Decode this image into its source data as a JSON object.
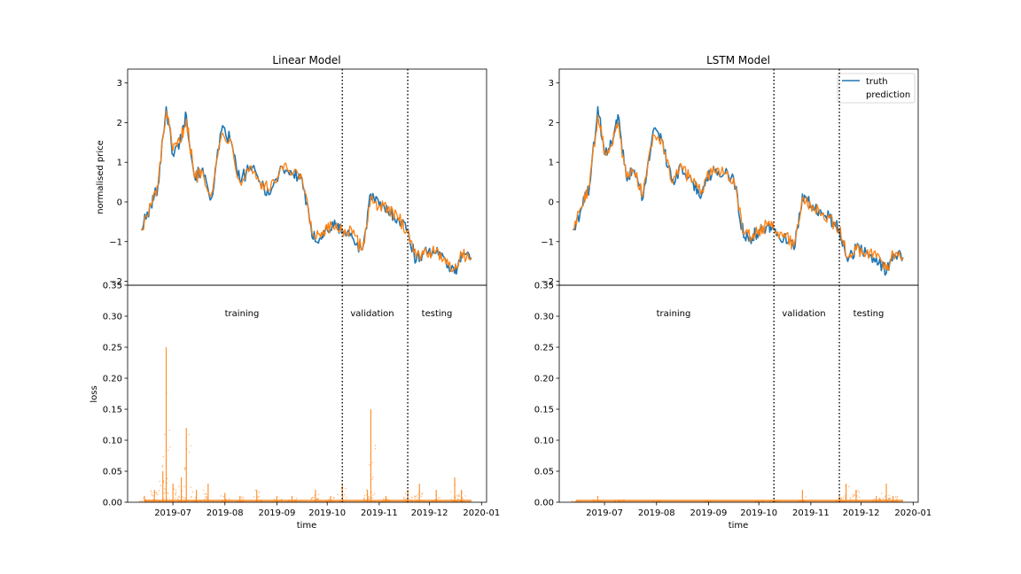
{
  "chart_data": [
    {
      "type": "line",
      "title": "Linear Model",
      "xlabel": "",
      "ylabel": "normalised price",
      "ylim": [
        -2.1,
        3.35
      ],
      "yticks": [
        -2,
        -1,
        0,
        1,
        2,
        3
      ],
      "series": [
        {
          "name": "truth",
          "color": "#1f77b4",
          "x": [
            "2019-06-12",
            "2019-06-18",
            "2019-06-22",
            "2019-06-27",
            "2019-07-01",
            "2019-07-05",
            "2019-07-09",
            "2019-07-14",
            "2019-07-18",
            "2019-07-24",
            "2019-07-30",
            "2019-08-04",
            "2019-08-10",
            "2019-08-16",
            "2019-08-22",
            "2019-08-28",
            "2019-09-04",
            "2019-09-10",
            "2019-09-16",
            "2019-09-22",
            "2019-09-27",
            "2019-10-01",
            "2019-10-06",
            "2019-10-10",
            "2019-10-16",
            "2019-10-22",
            "2019-10-27",
            "2019-11-01",
            "2019-11-06",
            "2019-11-12",
            "2019-11-18",
            "2019-11-23",
            "2019-11-28",
            "2019-12-04",
            "2019-12-10",
            "2019-12-16",
            "2019-12-20",
            "2019-12-26"
          ],
          "y": [
            -0.7,
            -0.1,
            0.4,
            2.4,
            1.2,
            1.5,
            2.2,
            0.6,
            0.8,
            0.1,
            1.8,
            1.6,
            0.5,
            0.9,
            0.5,
            0.2,
            0.9,
            0.7,
            0.6,
            -0.9,
            -0.9,
            -0.7,
            -0.6,
            -0.7,
            -0.9,
            -1.2,
            0.2,
            -0.1,
            -0.2,
            -0.4,
            -0.7,
            -1.5,
            -1.2,
            -1.3,
            -1.4,
            -1.8,
            -1.3,
            -1.4
          ]
        },
        {
          "name": "prediction",
          "color": "#ff7f0e",
          "x": [
            "2019-06-12",
            "2019-06-18",
            "2019-06-22",
            "2019-06-27",
            "2019-07-01",
            "2019-07-05",
            "2019-07-09",
            "2019-07-14",
            "2019-07-18",
            "2019-07-24",
            "2019-07-30",
            "2019-08-04",
            "2019-08-10",
            "2019-08-16",
            "2019-08-22",
            "2019-08-28",
            "2019-09-04",
            "2019-09-10",
            "2019-09-16",
            "2019-09-22",
            "2019-09-27",
            "2019-10-01",
            "2019-10-06",
            "2019-10-10",
            "2019-10-16",
            "2019-10-22",
            "2019-10-27",
            "2019-11-01",
            "2019-11-06",
            "2019-11-12",
            "2019-11-18",
            "2019-11-23",
            "2019-11-28",
            "2019-12-04",
            "2019-12-10",
            "2019-12-16",
            "2019-12-20",
            "2019-12-26"
          ],
          "y": [
            -0.7,
            -0.1,
            0.4,
            2.3,
            1.3,
            1.5,
            2.1,
            0.6,
            0.8,
            0.2,
            1.7,
            1.6,
            0.5,
            0.9,
            0.5,
            0.3,
            0.9,
            0.7,
            0.6,
            -0.8,
            -0.9,
            -0.7,
            -0.6,
            -0.7,
            -0.8,
            -1.2,
            0.1,
            -0.1,
            -0.2,
            -0.4,
            -0.7,
            -1.4,
            -1.2,
            -1.3,
            -1.4,
            -1.7,
            -1.3,
            -1.4
          ]
        }
      ],
      "vlines": [
        "2019-10-10",
        "2019-11-18"
      ]
    },
    {
      "type": "scatter",
      "title": "",
      "xlabel": "time",
      "ylabel": "loss",
      "xlim": [
        "2019-06-04",
        "2020-01-04"
      ],
      "ylim": [
        0,
        0.35
      ],
      "yticks": [
        0.0,
        0.05,
        0.1,
        0.15,
        0.2,
        0.25,
        0.3,
        0.35
      ],
      "xticks": [
        "2019-07",
        "2019-08",
        "2019-09",
        "2019-10",
        "2019-11",
        "2019-12",
        "2020-01"
      ],
      "xtick_dates": [
        "2019-07-01",
        "2019-08-01",
        "2019-09-01",
        "2019-10-01",
        "2019-11-01",
        "2019-12-01",
        "2020-01-01"
      ],
      "annotations": [
        "training",
        "validation",
        "testing"
      ],
      "series": [
        {
          "color": "#ff7f0e",
          "x": [
            "2019-06-14",
            "2019-06-20",
            "2019-06-25",
            "2019-06-27",
            "2019-07-01",
            "2019-07-06",
            "2019-07-09",
            "2019-07-15",
            "2019-07-22",
            "2019-08-01",
            "2019-08-10",
            "2019-08-20",
            "2019-09-01",
            "2019-09-10",
            "2019-09-24",
            "2019-10-03",
            "2019-10-10",
            "2019-10-25",
            "2019-10-27",
            "2019-11-05",
            "2019-11-18",
            "2019-11-25",
            "2019-12-05",
            "2019-12-16",
            "2019-12-20"
          ],
          "y": [
            0.01,
            0.02,
            0.05,
            0.25,
            0.03,
            0.04,
            0.12,
            0.02,
            0.03,
            0.015,
            0.01,
            0.02,
            0.01,
            0.01,
            0.02,
            0.01,
            0.03,
            0.02,
            0.15,
            0.01,
            0.02,
            0.03,
            0.02,
            0.04,
            0.02
          ]
        }
      ],
      "vlines": [
        "2019-10-10",
        "2019-11-18"
      ]
    },
    {
      "type": "line",
      "title": "LSTM Model",
      "xlabel": "",
      "ylabel": "",
      "ylim": [
        -2.1,
        3.35
      ],
      "yticks": [
        -2,
        -1,
        0,
        1,
        2,
        3
      ],
      "legend": {
        "placement": "top-right",
        "entries": [
          "truth",
          "prediction"
        ]
      },
      "series": [
        {
          "name": "truth",
          "color": "#1f77b4",
          "x": [
            "2019-06-12",
            "2019-06-18",
            "2019-06-22",
            "2019-06-27",
            "2019-07-01",
            "2019-07-05",
            "2019-07-09",
            "2019-07-14",
            "2019-07-18",
            "2019-07-24",
            "2019-07-30",
            "2019-08-04",
            "2019-08-10",
            "2019-08-16",
            "2019-08-22",
            "2019-08-28",
            "2019-09-04",
            "2019-09-10",
            "2019-09-16",
            "2019-09-22",
            "2019-09-27",
            "2019-10-01",
            "2019-10-06",
            "2019-10-10",
            "2019-10-16",
            "2019-10-22",
            "2019-10-27",
            "2019-11-01",
            "2019-11-06",
            "2019-11-12",
            "2019-11-18",
            "2019-11-23",
            "2019-11-28",
            "2019-12-04",
            "2019-12-10",
            "2019-12-16",
            "2019-12-20",
            "2019-12-26"
          ],
          "y": [
            -0.7,
            -0.1,
            0.4,
            2.4,
            1.2,
            1.5,
            2.2,
            0.6,
            0.8,
            0.1,
            1.8,
            1.6,
            0.5,
            0.9,
            0.5,
            0.2,
            0.9,
            0.7,
            0.6,
            -0.9,
            -0.9,
            -0.7,
            -0.6,
            -0.7,
            -0.9,
            -1.2,
            0.2,
            -0.1,
            -0.2,
            -0.4,
            -0.7,
            -1.5,
            -1.2,
            -1.3,
            -1.4,
            -1.8,
            -1.3,
            -1.4
          ]
        },
        {
          "name": "prediction",
          "color": "#ff7f0e",
          "x": [
            "2019-06-12",
            "2019-06-18",
            "2019-06-22",
            "2019-06-27",
            "2019-07-01",
            "2019-07-05",
            "2019-07-09",
            "2019-07-14",
            "2019-07-18",
            "2019-07-24",
            "2019-07-30",
            "2019-08-04",
            "2019-08-10",
            "2019-08-16",
            "2019-08-22",
            "2019-08-28",
            "2019-09-04",
            "2019-09-10",
            "2019-09-16",
            "2019-09-22",
            "2019-09-27",
            "2019-10-01",
            "2019-10-06",
            "2019-10-10",
            "2019-10-16",
            "2019-10-22",
            "2019-10-27",
            "2019-11-01",
            "2019-11-06",
            "2019-11-12",
            "2019-11-18",
            "2019-11-23",
            "2019-11-28",
            "2019-12-04",
            "2019-12-10",
            "2019-12-16",
            "2019-12-20",
            "2019-12-26"
          ],
          "y": [
            -0.7,
            -0.1,
            0.4,
            2.2,
            1.3,
            1.4,
            2.0,
            0.6,
            0.8,
            0.2,
            1.7,
            1.6,
            0.5,
            0.9,
            0.5,
            0.3,
            0.9,
            0.7,
            0.6,
            -0.8,
            -0.9,
            -0.7,
            -0.6,
            -0.7,
            -0.8,
            -1.1,
            0.1,
            -0.1,
            -0.2,
            -0.4,
            -0.7,
            -1.4,
            -1.2,
            -1.3,
            -1.4,
            -1.7,
            -1.3,
            -1.4
          ]
        }
      ],
      "vlines": [
        "2019-10-10",
        "2019-11-18"
      ]
    },
    {
      "type": "scatter",
      "title": "",
      "xlabel": "time",
      "ylabel": "",
      "xlim": [
        "2019-06-04",
        "2020-01-04"
      ],
      "ylim": [
        0,
        0.35
      ],
      "yticks": [
        0.0,
        0.05,
        0.1,
        0.15,
        0.2,
        0.25,
        0.3,
        0.35
      ],
      "xticks": [
        "2019-07",
        "2019-08",
        "2019-09",
        "2019-10",
        "2019-11",
        "2019-12",
        "2020-01"
      ],
      "xtick_dates": [
        "2019-07-01",
        "2019-08-01",
        "2019-09-01",
        "2019-10-01",
        "2019-11-01",
        "2019-12-01",
        "2020-01-01"
      ],
      "annotations": [
        "training",
        "validation",
        "testing"
      ],
      "series": [
        {
          "color": "#ff7f0e",
          "x": [
            "2019-06-14",
            "2019-06-27",
            "2019-07-10",
            "2019-08-01",
            "2019-09-01",
            "2019-10-01",
            "2019-10-10",
            "2019-10-27",
            "2019-11-18",
            "2019-11-22",
            "2019-11-28",
            "2019-12-10",
            "2019-12-16",
            "2019-12-20"
          ],
          "y": [
            0.002,
            0.01,
            0.004,
            0.002,
            0.002,
            0.002,
            0.003,
            0.02,
            0.01,
            0.03,
            0.02,
            0.01,
            0.03,
            0.01
          ]
        }
      ],
      "vlines": [
        "2019-10-10",
        "2019-11-18"
      ]
    }
  ]
}
